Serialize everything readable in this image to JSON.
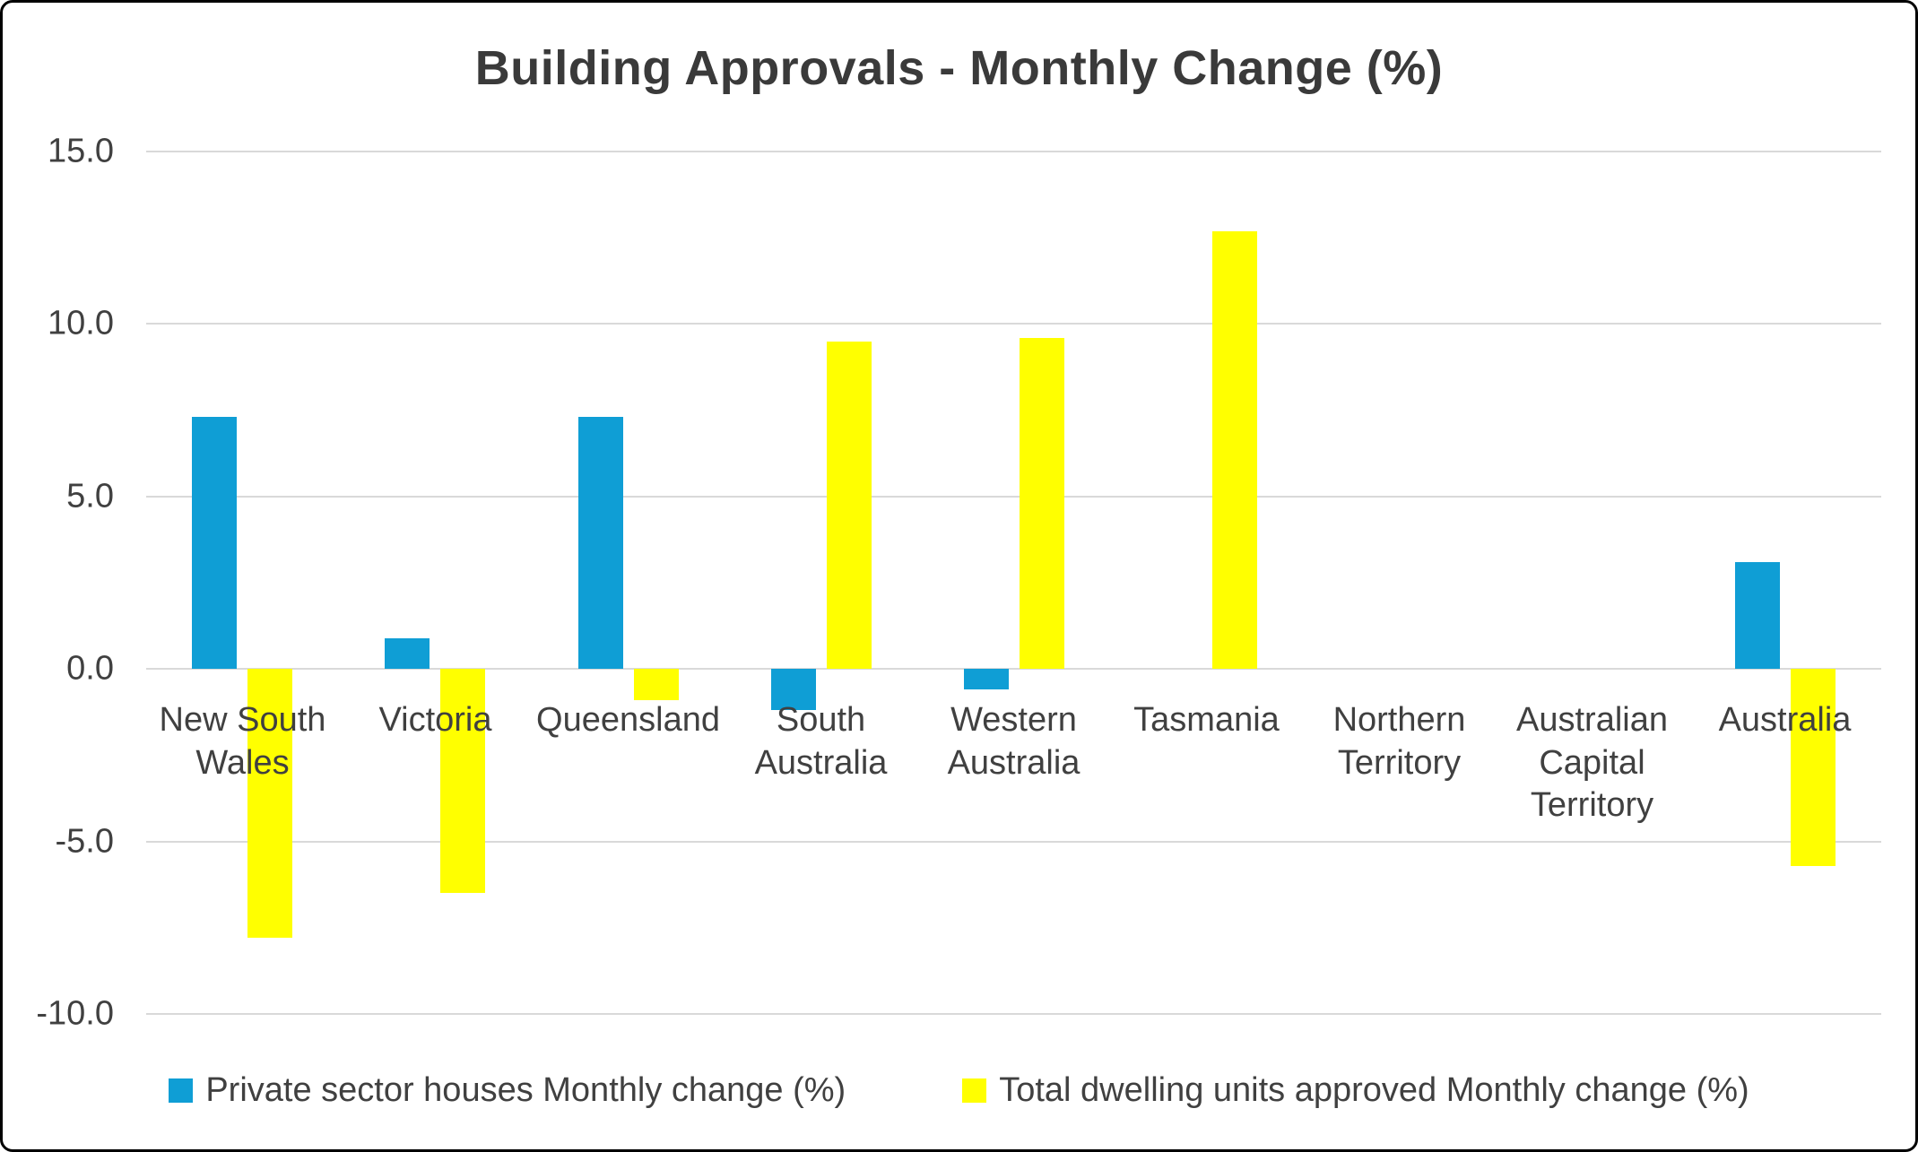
{
  "chart_data": {
    "type": "bar",
    "title": "Building Approvals - Monthly Change (%)",
    "categories": [
      "New South Wales",
      "Victoria",
      "Queensland",
      "South Australia",
      "Western Australia",
      "Tasmania",
      "Northern Territory",
      "Australian Capital Territory",
      "Australia"
    ],
    "series": [
      {
        "name": "Private sector houses Monthly change (%)",
        "color": "#0F9ED5",
        "values": [
          7.3,
          0.9,
          7.3,
          -1.2,
          -0.6,
          0,
          0,
          0,
          3.1
        ]
      },
      {
        "name": "Total dwelling units approved Monthly change (%)",
        "color": "#FFFF00",
        "values": [
          -7.8,
          -6.5,
          -0.9,
          9.5,
          9.6,
          12.7,
          0,
          0,
          -5.7
        ]
      }
    ],
    "yticks": [
      {
        "value": 15,
        "label": "15.0"
      },
      {
        "value": 10,
        "label": "10.0"
      },
      {
        "value": 5,
        "label": "5.0"
      },
      {
        "value": 0,
        "label": "0.0"
      },
      {
        "value": -5,
        "label": "-5.0"
      },
      {
        "value": -10,
        "label": "-10.0"
      }
    ],
    "ylim": [
      -10,
      15
    ],
    "xlabel": "",
    "ylabel": "",
    "grid": true,
    "legend_position": "bottom"
  },
  "colors": {
    "gridline": "#D9D9D9",
    "text": "#404040",
    "title": "#3A3A3A",
    "background": "#FFFFFF",
    "border": "#000000"
  }
}
